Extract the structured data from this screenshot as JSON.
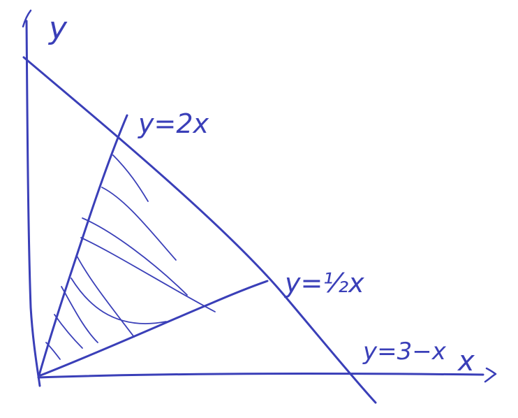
{
  "diagram": {
    "ink_color": "#3a3fb8",
    "axes": {
      "x_label": "x",
      "y_label": "y"
    },
    "lines": [
      {
        "id": "steep",
        "label": "y=2x"
      },
      {
        "id": "shallow",
        "label": "y=½x"
      },
      {
        "id": "boundary",
        "label": "y=3−x"
      }
    ],
    "region": {
      "description_visible": false,
      "hatched": true
    }
  }
}
